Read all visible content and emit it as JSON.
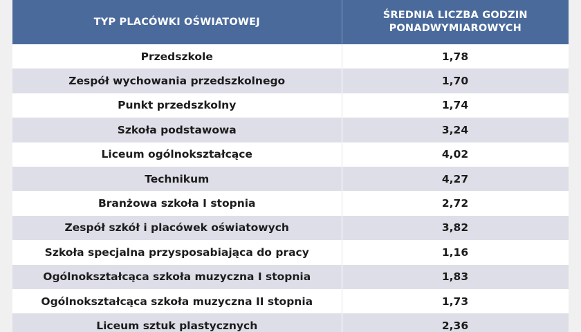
{
  "table": {
    "headers": {
      "type": "TYP PLACÓWKI OŚWIATOWEJ",
      "average_line1": "ŚREDNIA LICZBA GODZIN",
      "average_line2": "PONADWYMIAROWYCH"
    },
    "rows": [
      {
        "type": "Przedszkole",
        "value": "1,78"
      },
      {
        "type": "Zespół wychowania przedszkolnego",
        "value": "1,70"
      },
      {
        "type": "Punkt przedszkolny",
        "value": "1,74"
      },
      {
        "type": "Szkoła podstawowa",
        "value": "3,24"
      },
      {
        "type": "Liceum ogólnokształcące",
        "value": "4,02"
      },
      {
        "type": "Technikum",
        "value": "4,27"
      },
      {
        "type": "Branżowa szkoła I stopnia",
        "value": "2,72"
      },
      {
        "type": "Zespół szkół i placówek oświatowych",
        "value": "3,82"
      },
      {
        "type": "Szkoła specjalna przysposabiająca do pracy",
        "value": "1,16"
      },
      {
        "type": "Ogólnokształcąca szkoła muzyczna I stopnia",
        "value": "1,83"
      },
      {
        "type": "Ogólnokształcąca szkoła muzyczna II stopnia",
        "value": "1,73"
      },
      {
        "type": "Liceum sztuk plastycznych",
        "value": "2,36"
      }
    ]
  },
  "colors": {
    "header_bg": "#4a6a9c",
    "stripe_bg": "#dedee9",
    "page_bg": "#f0f0f0"
  }
}
